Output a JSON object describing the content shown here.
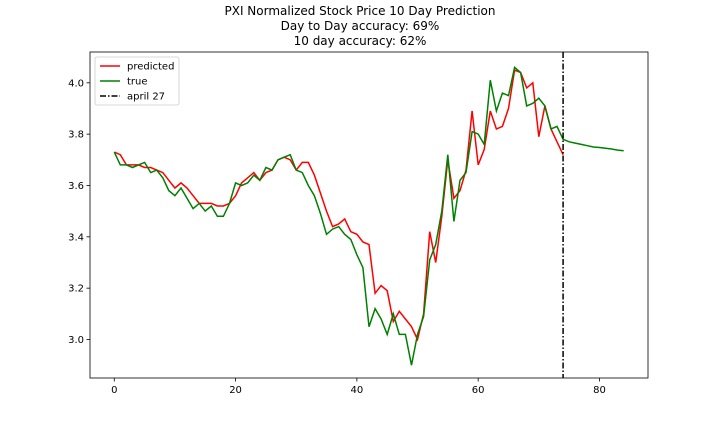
{
  "chart_data": {
    "type": "line",
    "title": "PXI Normalized Stock Price 10 Day Prediction",
    "subtitle_lines": [
      "Day to Day accuracy: 69%",
      "10 day accuracy: 62%"
    ],
    "xlim": [
      -4,
      88
    ],
    "ylim": [
      2.85,
      4.12
    ],
    "xticks": [
      0,
      20,
      40,
      60,
      80
    ],
    "yticks": [
      3.0,
      3.2,
      3.4,
      3.6,
      3.8,
      4.0
    ],
    "ytick_labels": [
      "3.0",
      "3.2",
      "3.4",
      "3.6",
      "3.8",
      "4.0"
    ],
    "grid": false,
    "legend_position": "top-left",
    "series": [
      {
        "name": "predicted",
        "color": "#ff0000",
        "x": [
          0,
          1,
          2,
          3,
          4,
          5,
          6,
          7,
          8,
          9,
          10,
          11,
          12,
          13,
          14,
          15,
          16,
          17,
          18,
          19,
          20,
          21,
          22,
          23,
          24,
          25,
          26,
          27,
          28,
          29,
          30,
          31,
          32,
          33,
          34,
          35,
          36,
          37,
          38,
          39,
          40,
          41,
          42,
          43,
          44,
          45,
          46,
          47,
          48,
          49,
          50,
          51,
          52,
          53,
          54,
          55,
          56,
          57,
          58,
          59,
          60,
          61,
          62,
          63,
          64,
          65,
          66,
          67,
          68,
          69,
          70,
          71,
          72,
          73,
          74
        ],
        "y": [
          3.73,
          3.72,
          3.68,
          3.68,
          3.68,
          3.67,
          3.67,
          3.66,
          3.65,
          3.62,
          3.59,
          3.61,
          3.59,
          3.56,
          3.53,
          3.53,
          3.53,
          3.52,
          3.52,
          3.53,
          3.56,
          3.61,
          3.63,
          3.65,
          3.62,
          3.65,
          3.66,
          3.7,
          3.71,
          3.7,
          3.66,
          3.69,
          3.69,
          3.64,
          3.57,
          3.5,
          3.44,
          3.45,
          3.47,
          3.42,
          3.41,
          3.38,
          3.37,
          3.18,
          3.21,
          3.19,
          3.07,
          3.11,
          3.08,
          3.05,
          3.0,
          3.1,
          3.42,
          3.3,
          3.48,
          3.7,
          3.55,
          3.58,
          3.66,
          3.89,
          3.68,
          3.74,
          3.89,
          3.82,
          3.83,
          3.9,
          4.05,
          4.04,
          3.98,
          4.0,
          3.79,
          3.91,
          3.82,
          3.77,
          3.72
        ]
      },
      {
        "name": "true",
        "color": "#008000",
        "x": [
          0,
          1,
          2,
          3,
          4,
          5,
          6,
          7,
          8,
          9,
          10,
          11,
          12,
          13,
          14,
          15,
          16,
          17,
          18,
          19,
          20,
          21,
          22,
          23,
          24,
          25,
          26,
          27,
          28,
          29,
          30,
          31,
          32,
          33,
          34,
          35,
          36,
          37,
          38,
          39,
          40,
          41,
          42,
          43,
          44,
          45,
          46,
          47,
          48,
          49,
          50,
          51,
          52,
          53,
          54,
          55,
          56,
          57,
          58,
          59,
          60,
          61,
          62,
          63,
          64,
          65,
          66,
          67,
          68,
          69,
          70,
          71,
          72,
          73,
          74,
          75,
          76,
          77,
          78,
          79,
          80,
          81,
          82,
          83,
          84
        ],
        "y": [
          3.73,
          3.68,
          3.68,
          3.67,
          3.68,
          3.69,
          3.65,
          3.66,
          3.63,
          3.58,
          3.56,
          3.59,
          3.55,
          3.51,
          3.53,
          3.5,
          3.52,
          3.48,
          3.48,
          3.53,
          3.61,
          3.6,
          3.61,
          3.64,
          3.62,
          3.67,
          3.66,
          3.7,
          3.71,
          3.72,
          3.66,
          3.65,
          3.6,
          3.56,
          3.49,
          3.41,
          3.43,
          3.44,
          3.41,
          3.39,
          3.33,
          3.28,
          3.05,
          3.12,
          3.08,
          3.02,
          3.1,
          3.02,
          3.02,
          2.9,
          3.02,
          3.09,
          3.31,
          3.37,
          3.5,
          3.72,
          3.46,
          3.62,
          3.65,
          3.81,
          3.8,
          3.76,
          4.01,
          3.89,
          3.96,
          3.95,
          4.06,
          4.04,
          3.91,
          3.92,
          3.94,
          3.91,
          3.82,
          3.83,
          3.78,
          3.77,
          3.765,
          3.76,
          3.755,
          3.75,
          3.748,
          3.745,
          3.742,
          3.738,
          3.735
        ]
      }
    ],
    "vline": {
      "name": "april 27",
      "x": 74,
      "color": "#000000"
    }
  }
}
